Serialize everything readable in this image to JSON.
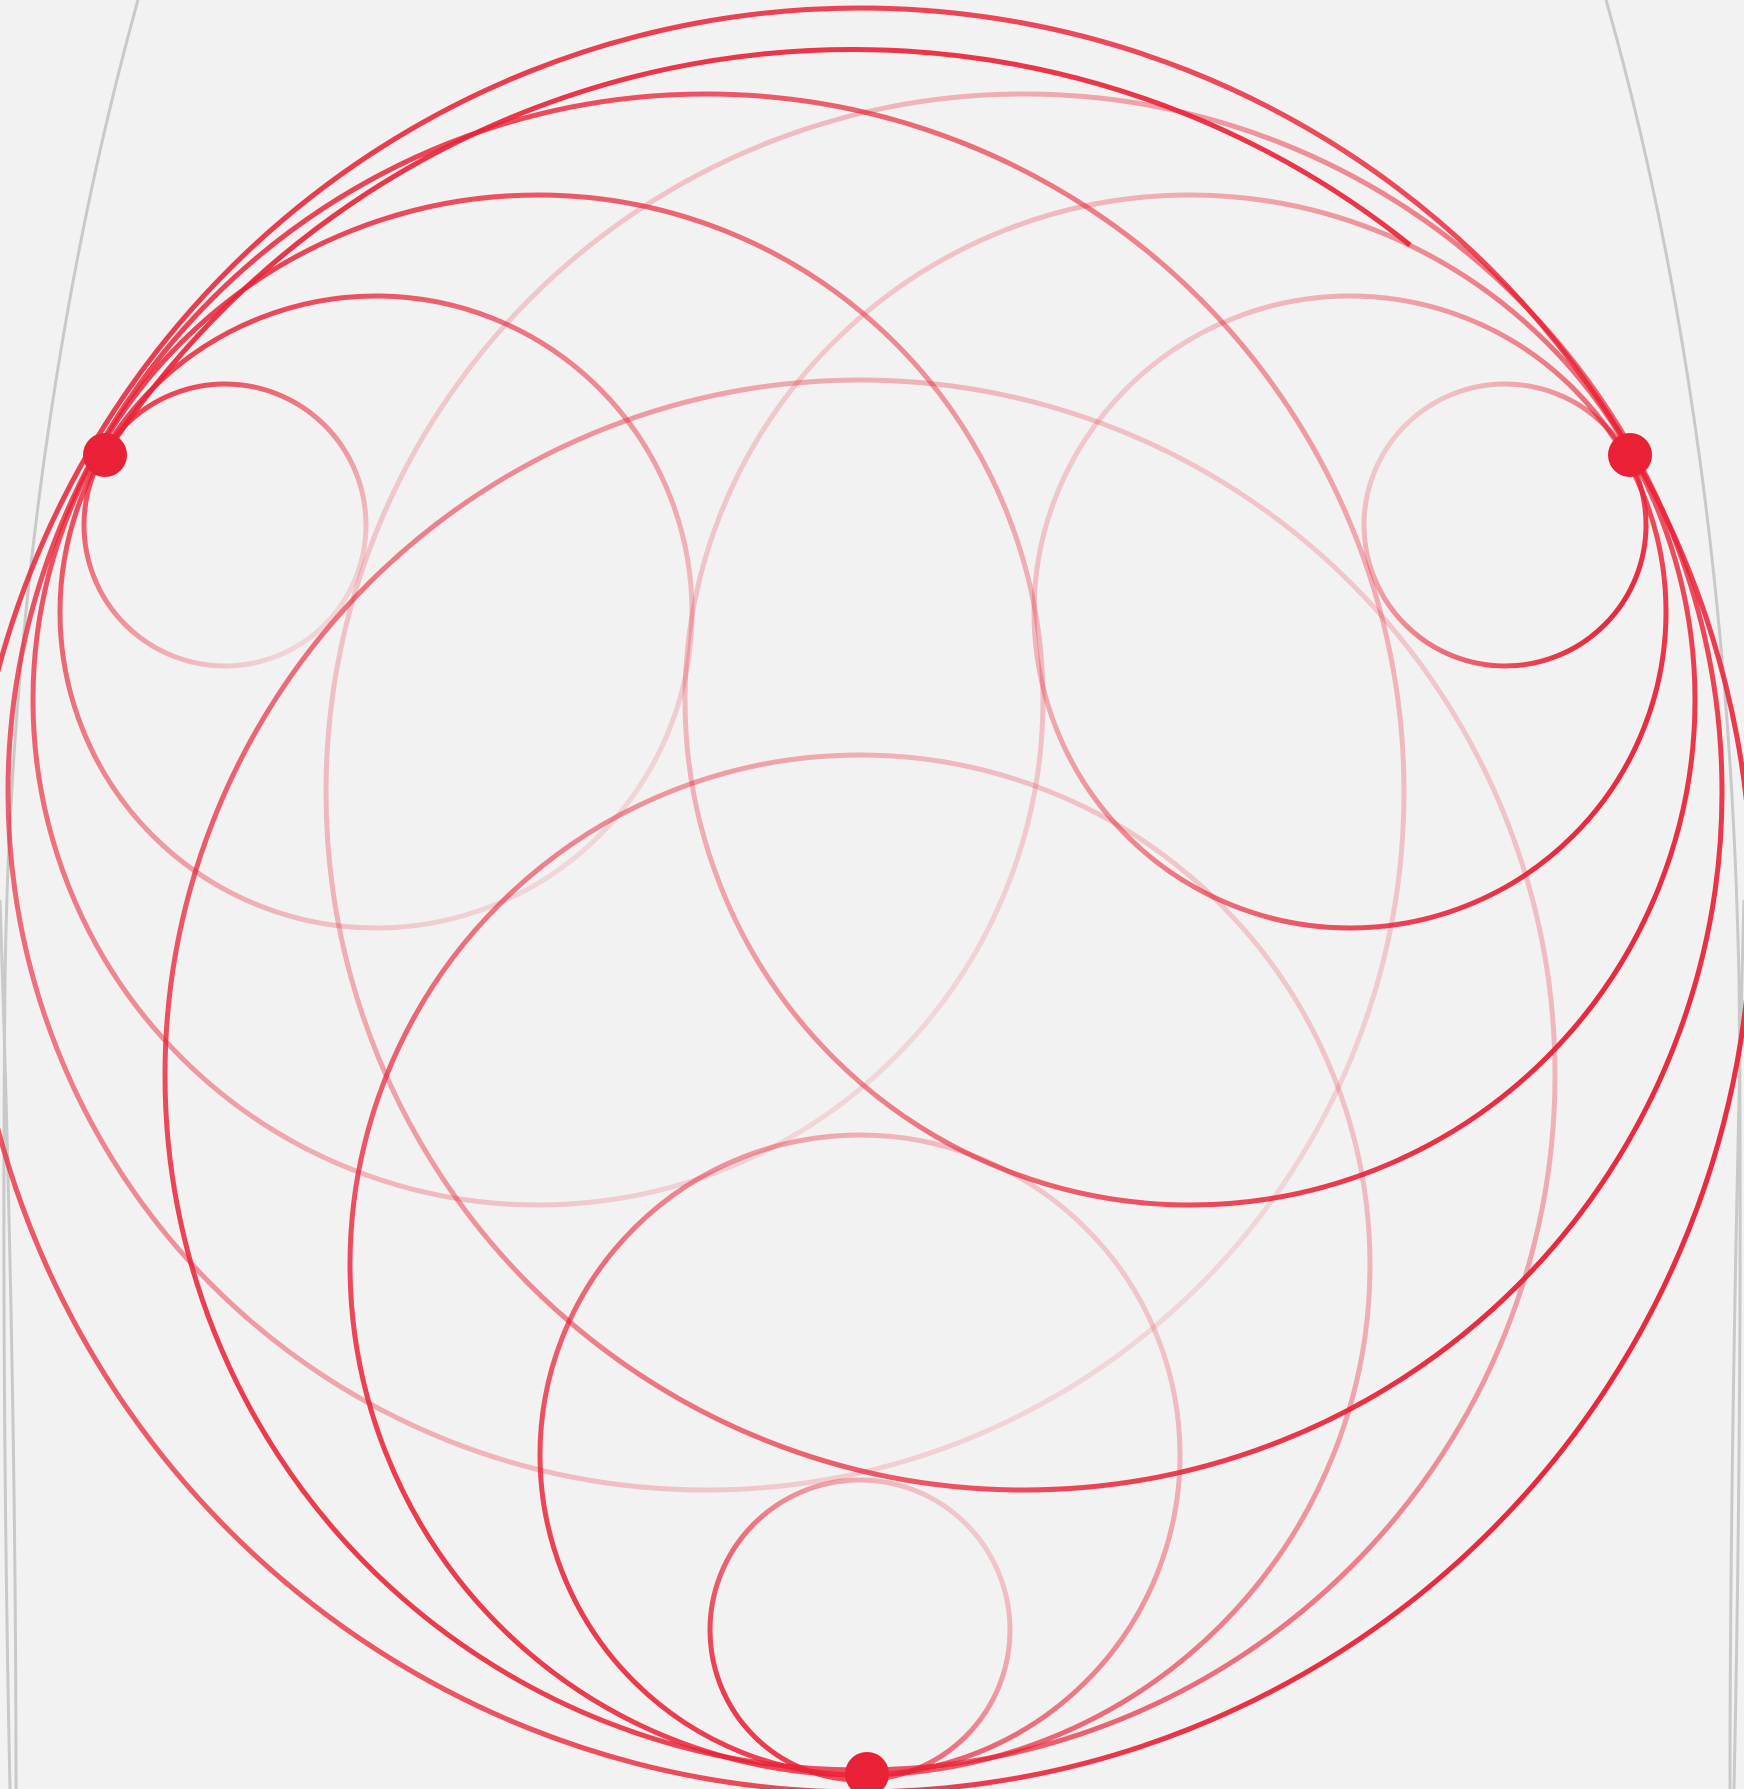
{
  "colors": {
    "background": "#f2f2f2",
    "accent": "#ea2136",
    "guide": "#c9c9c9"
  },
  "diagram": {
    "kind": "circle-fan",
    "anchor_points": [
      {
        "id": "left-anchor",
        "shape": "dot"
      },
      {
        "id": "right-anchor",
        "shape": "dot"
      },
      {
        "id": "bottom-anchor",
        "shape": "dot"
      }
    ],
    "circle_families": [
      {
        "anchor": "left-anchor",
        "count": 6
      },
      {
        "anchor": "right-anchor",
        "count": 6
      },
      {
        "anchor": "bottom-anchor",
        "count": 6
      }
    ],
    "guide_curves": 4
  }
}
